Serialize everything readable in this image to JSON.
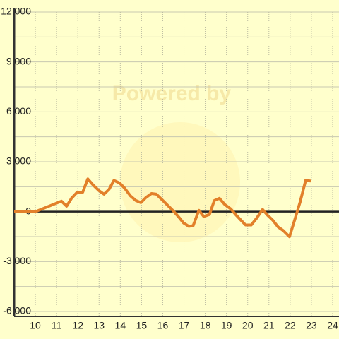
{
  "chart_data": {
    "type": "line",
    "watermark": "Powered by",
    "x": [
      9.0,
      10.0,
      11.23,
      11.47,
      11.7,
      11.97,
      12.23,
      12.47,
      12.73,
      13.0,
      13.23,
      13.47,
      13.7,
      13.97,
      14.2,
      14.47,
      14.73,
      14.97,
      15.2,
      15.47,
      15.7,
      15.97,
      16.23,
      16.47,
      16.73,
      16.97,
      17.23,
      17.43,
      17.7,
      17.93,
      18.2,
      18.43,
      18.67,
      18.93,
      19.2,
      19.43,
      19.67,
      19.9,
      20.17,
      20.43,
      20.7,
      20.93,
      21.17,
      21.43,
      21.67,
      21.97,
      22.23,
      22.47,
      22.73,
      22.97
    ],
    "series": [
      {
        "color": "#e2802a",
        "values": [
          0,
          0,
          630,
          330,
          800,
          1170,
          1170,
          1970,
          1590,
          1260,
          1050,
          1340,
          1880,
          1720,
          1420,
          960,
          670,
          540,
          840,
          1090,
          1050,
          710,
          380,
          80,
          -290,
          -670,
          -880,
          -840,
          80,
          -290,
          -170,
          670,
          800,
          420,
          170,
          -170,
          -500,
          -800,
          -800,
          -380,
          130,
          -210,
          -500,
          -920,
          -1130,
          -1510,
          -420,
          590,
          1880,
          1840
        ]
      }
    ],
    "xlim": [
      9,
      24.3
    ],
    "xticks": [
      10,
      11,
      12,
      13,
      14,
      15,
      16,
      17,
      18,
      19,
      20,
      21,
      22,
      23,
      24
    ],
    "ylim": [
      -6000,
      12000
    ],
    "yticks": [
      {
        "value": -6000,
        "label": "-6,000"
      },
      {
        "value": -3000,
        "label": "-3,000"
      },
      0,
      {
        "value": 3000,
        "label": "3,000"
      },
      {
        "value": 6000,
        "label": "6,000"
      },
      {
        "value": 9000,
        "label": "9,000"
      },
      {
        "value": 12000,
        "label": "12,000"
      }
    ],
    "y_minor_ticks": [
      -4500,
      -1500,
      1500,
      4500,
      7500,
      10500
    ],
    "grid": true
  }
}
